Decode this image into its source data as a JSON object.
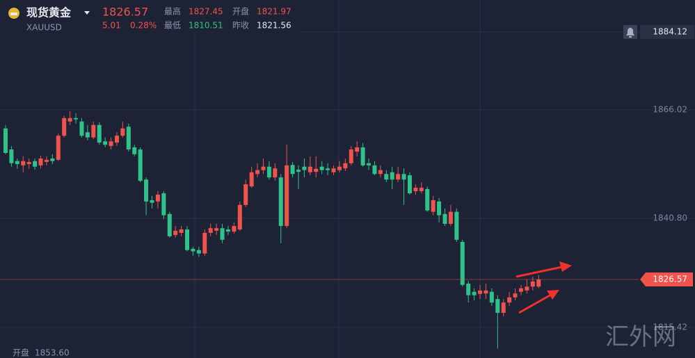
{
  "header": {
    "name": "现货黄金",
    "symbol": "XAUUSD",
    "price": "1826.57",
    "change": "5.01",
    "change_pct": "0.28%",
    "high_label": "最高",
    "high": "1827.45",
    "open_label": "开盘",
    "open": "1821.97",
    "low_label": "最低",
    "low": "1810.51",
    "prev_close_label": "昨收",
    "prev_close": "1821.56"
  },
  "indicator": {
    "label": "开盘",
    "value": "1853.60"
  },
  "watermark": "汇外网",
  "chart_data": {
    "type": "candlestick",
    "up_color": "#f0524c",
    "down_color": "#2fc28a",
    "ylim": [
      1808.3,
      1891.56
    ],
    "yticks": [
      1866.02,
      {
        "value": 1840.8,
        "label": "1840.80"
      },
      1815.42
    ],
    "alert": 1884.12,
    "grid": true,
    "open": [
      1861.7,
      1856.8,
      1854.1,
      1853.1,
      1853.4,
      1854.1,
      1853.1,
      1853.9,
      1854.7,
      1854.4,
      1860.0,
      1863.3,
      1864.1,
      1863.3,
      1860.8,
      1859.6,
      1862.5,
      1858.7,
      1857.6,
      1858.4,
      1860.0,
      1862.1,
      1857.3,
      1856.8,
      1849.8,
      1845.0,
      1844.7,
      1846.6,
      1841.8,
      1836.9,
      1837.4,
      1838.2,
      1833.7,
      1833.4,
      1832.6,
      1837.4,
      1837.9,
      1838.5,
      1838.2,
      1837.7,
      1838.2,
      1843.9,
      1848.2,
      1851.1,
      1852.0,
      1852.8,
      1850.3,
      1850.3,
      1839.0,
      1853.2,
      1852.1,
      1852.8,
      1851.5,
      1851.6,
      1852.8,
      1852.4,
      1851.5,
      1852.0,
      1852.4,
      1853.6,
      1856.3,
      1857.3,
      1853.6,
      1853.1,
      1851.1,
      1851.1,
      1851.5,
      1849.8,
      1851.1,
      1850.8,
      1847.1,
      1847.1,
      1847.6,
      1842.3,
      1844.7,
      1841.8,
      1839.5,
      1842.3,
      1835.3,
      1825.6,
      1823.7,
      1823.2,
      1823.3,
      1823.7,
      1822.0,
      1818.8,
      1821.2,
      1822.4,
      1823.7,
      1824.0,
      1824.9,
      1824.9
    ],
    "high": [
      1862.5,
      1857.6,
      1854.7,
      1855.2,
      1854.7,
      1854.7,
      1855.4,
      1855.2,
      1855.7,
      1860.5,
      1864.6,
      1865.7,
      1865.2,
      1864.1,
      1862.5,
      1863.3,
      1863.1,
      1859.6,
      1859.6,
      1860.8,
      1863.3,
      1862.8,
      1857.9,
      1857.3,
      1850.3,
      1846.0,
      1847.1,
      1847.1,
      1842.3,
      1839.0,
      1839.0,
      1839.0,
      1834.2,
      1834.2,
      1838.2,
      1839.5,
      1839.5,
      1839.5,
      1839.0,
      1839.8,
      1844.7,
      1849.8,
      1852.8,
      1853.6,
      1854.7,
      1854.1,
      1853.6,
      1851.1,
      1857.9,
      1853.9,
      1853.1,
      1854.7,
      1855.2,
      1855.2,
      1854.1,
      1853.6,
      1853.1,
      1854.1,
      1854.7,
      1857.6,
      1858.7,
      1858.3,
      1854.7,
      1854.1,
      1853.1,
      1852.0,
      1852.8,
      1852.8,
      1852.4,
      1851.5,
      1848.7,
      1849.2,
      1848.2,
      1846.0,
      1845.5,
      1843.1,
      1843.9,
      1843.1,
      1835.8,
      1826.2,
      1824.5,
      1825.3,
      1825.6,
      1824.5,
      1822.9,
      1822.0,
      1823.7,
      1824.5,
      1825.3,
      1826.6,
      1827.2,
      1827.6
    ],
    "low": [
      1855.7,
      1852.8,
      1852.3,
      1851.5,
      1852.3,
      1852.1,
      1852.4,
      1853.1,
      1853.4,
      1854.1,
      1859.6,
      1862.5,
      1862.8,
      1859.6,
      1858.9,
      1859.2,
      1857.9,
      1857.3,
      1856.8,
      1857.6,
      1859.6,
      1856.3,
      1855.2,
      1849.2,
      1841.5,
      1843.1,
      1843.1,
      1840.6,
      1836.3,
      1836.3,
      1836.6,
      1833.1,
      1832.1,
      1831.8,
      1832.1,
      1836.6,
      1836.9,
      1835.0,
      1836.9,
      1837.2,
      1837.9,
      1843.4,
      1847.9,
      1850.3,
      1851.1,
      1849.8,
      1849.5,
      1835.0,
      1838.5,
      1850.3,
      1847.6,
      1850.3,
      1850.8,
      1850.3,
      1851.1,
      1850.8,
      1850.8,
      1851.5,
      1851.8,
      1853.1,
      1855.2,
      1852.8,
      1852.0,
      1850.8,
      1850.3,
      1849.2,
      1847.6,
      1849.2,
      1843.9,
      1846.3,
      1846.3,
      1846.6,
      1842.3,
      1841.5,
      1839.8,
      1839.0,
      1839.0,
      1835.3,
      1824.9,
      1821.2,
      1821.7,
      1822.0,
      1822.0,
      1820.4,
      1810.5,
      1818.0,
      1820.4,
      1821.7,
      1822.9,
      1823.3,
      1824.0,
      1824.5
    ],
    "close": [
      1856.0,
      1853.6,
      1853.4,
      1854.1,
      1853.9,
      1852.8,
      1854.7,
      1854.4,
      1854.1,
      1860.0,
      1864.1,
      1864.1,
      1863.8,
      1860.0,
      1859.6,
      1862.5,
      1858.4,
      1857.9,
      1858.7,
      1860.0,
      1861.7,
      1856.8,
      1855.7,
      1849.5,
      1844.7,
      1844.4,
      1846.3,
      1841.5,
      1836.6,
      1837.9,
      1838.2,
      1833.4,
      1833.1,
      1832.6,
      1837.4,
      1838.5,
      1838.5,
      1835.8,
      1837.7,
      1839.0,
      1843.9,
      1848.7,
      1851.5,
      1852.0,
      1852.8,
      1850.3,
      1852.4,
      1839.0,
      1853.1,
      1851.1,
      1851.6,
      1852.0,
      1852.8,
      1852.3,
      1852.0,
      1852.0,
      1852.4,
      1852.8,
      1853.6,
      1856.8,
      1857.3,
      1853.1,
      1853.1,
      1851.1,
      1852.0,
      1849.8,
      1849.8,
      1851.1,
      1849.8,
      1846.6,
      1847.9,
      1847.9,
      1842.6,
      1845.0,
      1841.5,
      1839.5,
      1842.3,
      1835.8,
      1825.3,
      1822.9,
      1822.9,
      1824.0,
      1824.0,
      1821.2,
      1818.8,
      1821.2,
      1822.4,
      1823.3,
      1824.5,
      1824.9,
      1826.1,
      1826.57
    ]
  }
}
